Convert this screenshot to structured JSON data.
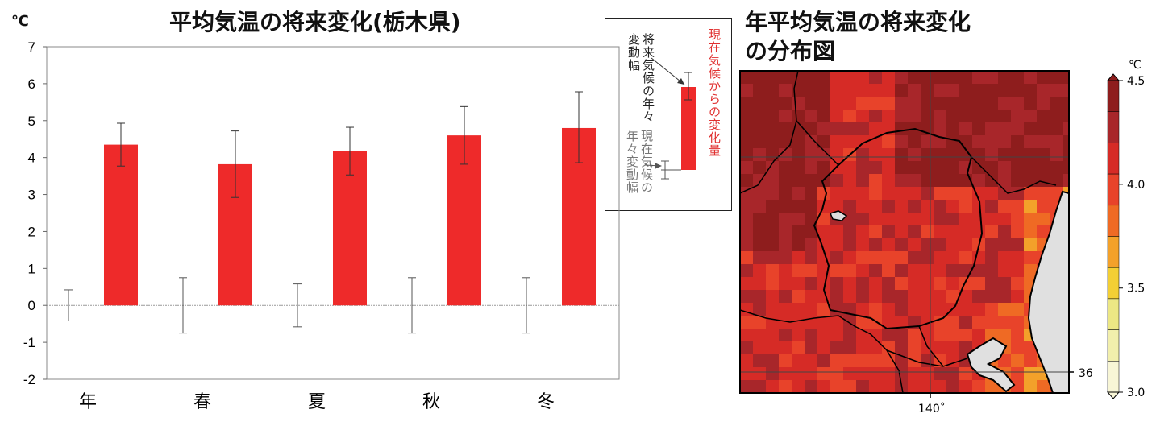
{
  "bar_chart": {
    "title": "平均気温の将来変化(栃木県)",
    "unit_label": "℃",
    "zero_line_label": "0",
    "legend": {
      "future_variability": "将来気候の年々変動幅",
      "current_variability": "現在気候の年々変動幅",
      "change": "現在気候からの変化量"
    }
  },
  "map": {
    "title_line1": "年平均気温の将来変化",
    "title_line2": "の分布図",
    "colorbar_unit": "℃",
    "colorbar_ticks": [
      "4.5",
      "4.0",
      "3.5",
      "3.0"
    ],
    "colorbar_colors": [
      "#8e1d1d",
      "#a8262a",
      "#d62b26",
      "#e8432a",
      "#ef6a24",
      "#f3a12a",
      "#f3cf34",
      "#ece784",
      "#f2efac",
      "#f8f6d6"
    ],
    "lat_label": "36",
    "lon_label": "140˚"
  },
  "chart_data": {
    "type": "bar",
    "title": "平均気温の将来変化(栃木県)",
    "ylabel": "℃",
    "ylim": [
      -2,
      7
    ],
    "yticks": [
      "7",
      "6",
      "5",
      "4",
      "3",
      "2",
      "1",
      "0",
      "-1",
      "-2"
    ],
    "categories": [
      "年",
      "春",
      "夏",
      "秋",
      "冬"
    ],
    "series": [
      {
        "name": "現在気候からの変化量",
        "values": [
          4.35,
          3.82,
          4.17,
          4.6,
          4.8
        ],
        "error_low": [
          3.77,
          2.92,
          3.53,
          3.82,
          3.86
        ],
        "error_high": [
          4.93,
          4.72,
          4.82,
          5.38,
          5.78
        ],
        "color": "#ee2a2a"
      }
    ],
    "current_variability": {
      "low": [
        -0.42,
        -0.75,
        -0.58,
        -0.75,
        -0.75
      ],
      "high": [
        0.42,
        0.75,
        0.58,
        0.75,
        0.75
      ]
    }
  }
}
